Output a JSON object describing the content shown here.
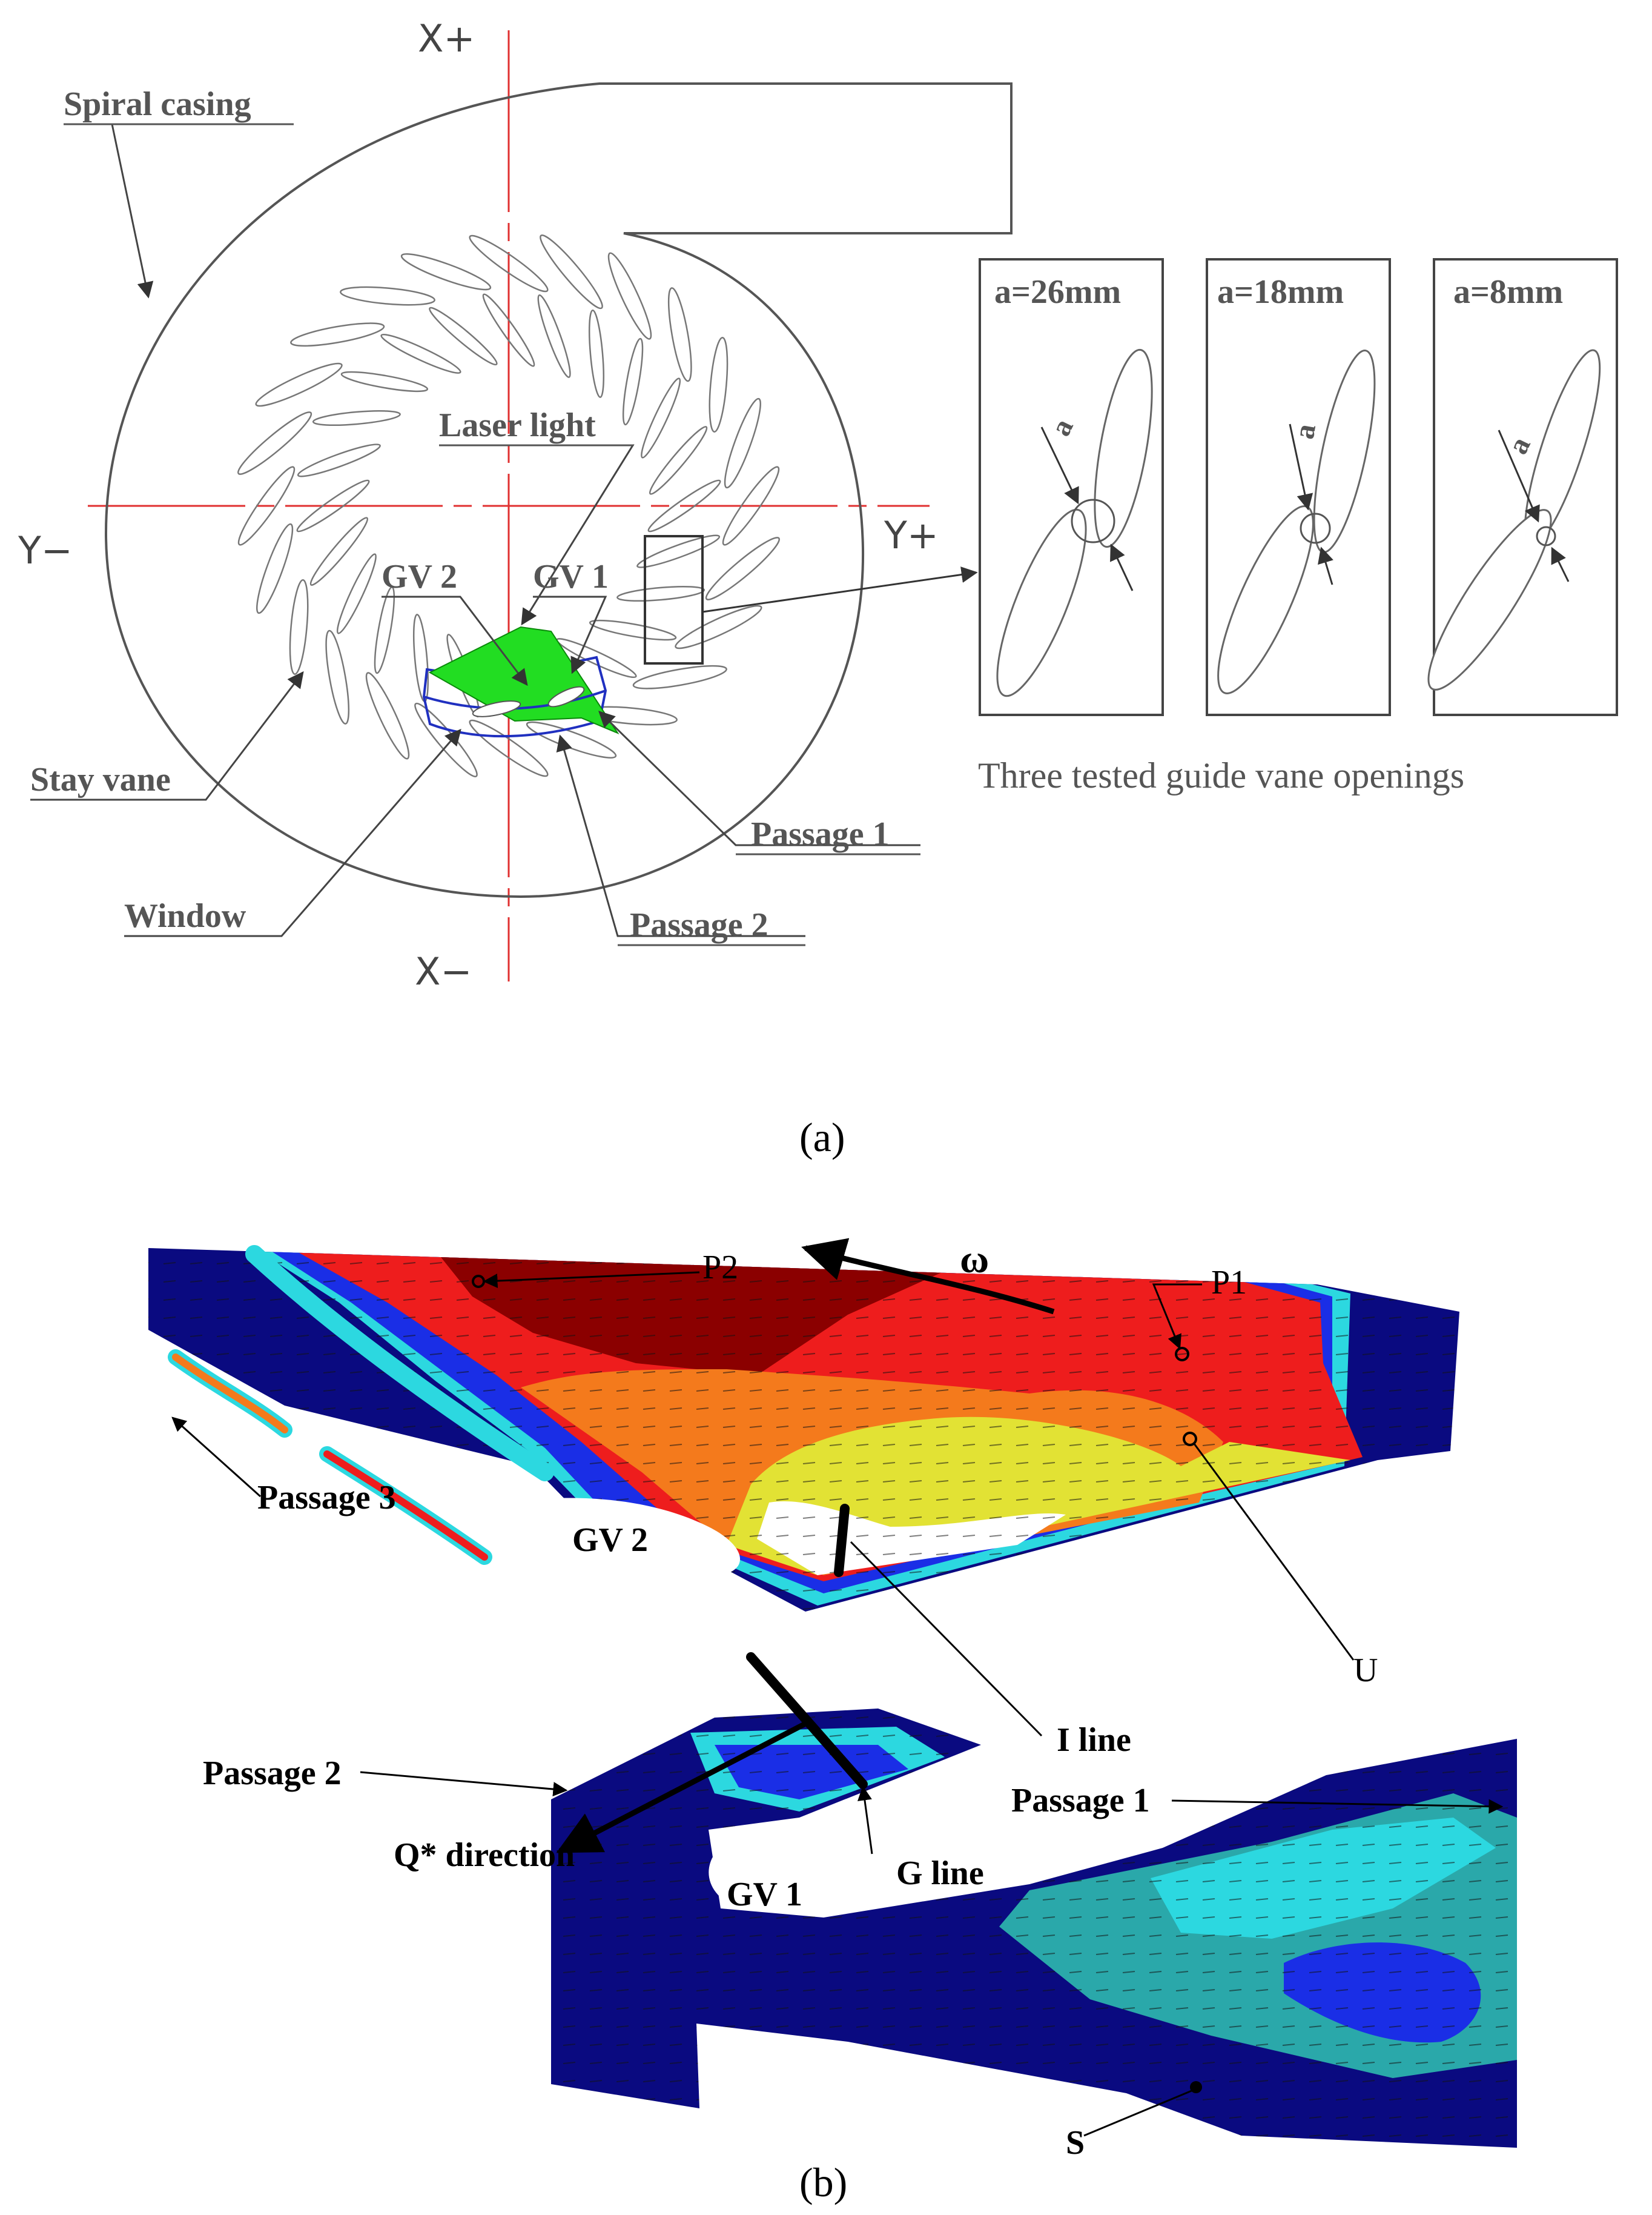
{
  "panel_a": {
    "axes": {
      "x_plus": "X+",
      "x_minus": "X−",
      "y_minus": "Y−",
      "y_plus": "Y+"
    },
    "labels": {
      "spiral_casing": "Spiral casing",
      "laser_light": "Laser light",
      "gv2": "GV 2",
      "gv1": "GV 1",
      "stay_vane": "Stay vane",
      "window": "Window",
      "passage1": "Passage 1",
      "passage2": "Passage 2"
    },
    "openings": [
      {
        "label": "a=26mm",
        "mark": "a"
      },
      {
        "label": "a=18mm",
        "mark": "a"
      },
      {
        "label": "a=8mm",
        "mark": "a"
      }
    ],
    "openings_caption": "Three tested guide vane openings",
    "caption": "(a)"
  },
  "panel_b": {
    "labels": {
      "p2": "P2",
      "omega": "ω",
      "p1": "P1",
      "passage3": "Passage 3",
      "gv2": "GV 2",
      "u": "U",
      "i_line": "I line",
      "passage2": "Passage 2",
      "passage1": "Passage 1",
      "q_direction": "Q* direction",
      "g_line": "G line",
      "gv1": "GV 1",
      "s": "S"
    },
    "caption": "(b)"
  },
  "colors": {
    "dark_red": "#8b0000",
    "red": "#ee1d1d",
    "orange": "#f47a1c",
    "yellow": "#e2e234",
    "cyan": "#2cd8e0",
    "teal": "#2aa8aa",
    "blue": "#1a2ee6",
    "navy": "#0a0a80",
    "laser_green": "#22dd22",
    "axis_red": "#e03030"
  }
}
